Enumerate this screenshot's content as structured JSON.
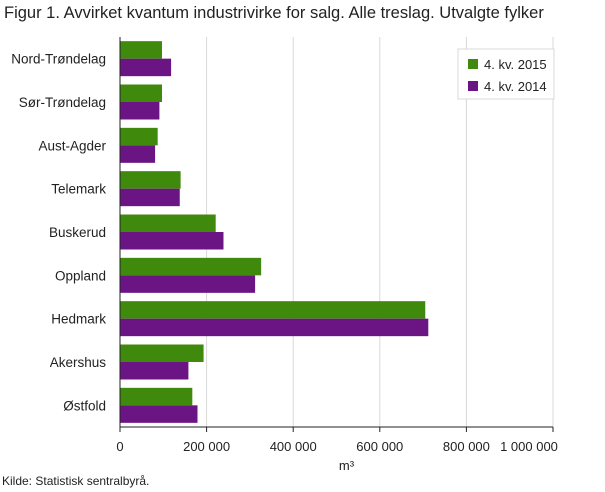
{
  "figure": {
    "title": "Figur 1. Avvirket kvantum industrivirke for salg. Alle treslag. Utvalgte fylker",
    "source": "Kilde: Statistisk sentralbyrå."
  },
  "colors": {
    "series_2015": "#3f8a0c",
    "series_2014": "#6b1584",
    "grid": "#d9d9d9",
    "axis": "#222222"
  },
  "chart_data": {
    "type": "bar",
    "orientation": "horizontal",
    "title": "Figur 1. Avvirket kvantum industrivirke for salg. Alle treslag. Utvalgte fylker",
    "xlabel": "m³",
    "ylabel": "",
    "xlim": [
      0,
      1000000
    ],
    "xticks": [
      0,
      200000,
      400000,
      600000,
      800000,
      1000000
    ],
    "xtick_labels": [
      "0",
      "200 000",
      "400 000",
      "600 000",
      "800 000",
      "1 000 000"
    ],
    "grid": "vertical",
    "legend_position": "top-right",
    "categories": [
      "Nord-Trøndelag",
      "Sør-Trøndelag",
      "Aust-Agder",
      "Telemark",
      "Buskerud",
      "Oppland",
      "Hedmark",
      "Akershus",
      "Østfold"
    ],
    "series": [
      {
        "name": "4. kv. 2015",
        "values": [
          97000,
          97000,
          87000,
          140000,
          221000,
          326000,
          705000,
          193000,
          167000
        ]
      },
      {
        "name": "4. kv. 2014",
        "values": [
          118000,
          91000,
          81000,
          138000,
          239000,
          312000,
          712000,
          158000,
          179000
        ]
      }
    ]
  }
}
